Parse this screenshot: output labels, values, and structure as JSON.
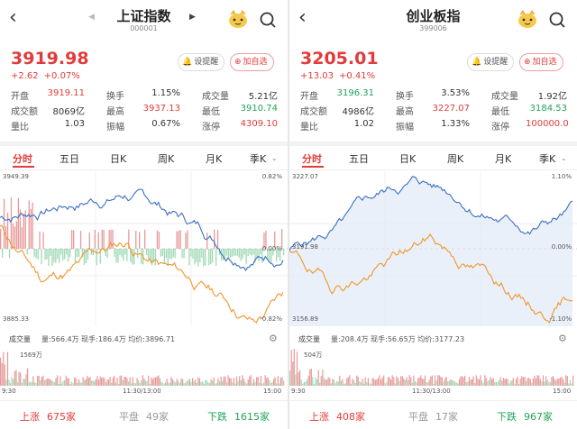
{
  "panels": [
    {
      "title": "上证指数",
      "code": "000001",
      "price": "3919.98",
      "change": "+2.62",
      "change_pct": "+0.07%",
      "remind_label": "设提醒",
      "add_label": "加自选",
      "stats": [
        [
          {
            "label": "开盘",
            "value": "3919.11",
            "color": "red"
          },
          {
            "label": "换手",
            "value": "1.15%",
            "color": "blk"
          },
          {
            "label": "成交量",
            "value": "5.21亿",
            "color": "blk"
          }
        ],
        [
          {
            "label": "成交额",
            "value": "8069亿",
            "color": "blk"
          },
          {
            "label": "最高",
            "value": "3937.13",
            "color": "red"
          },
          {
            "label": "最低",
            "value": "3910.74",
            "color": "green"
          }
        ],
        [
          {
            "label": "量比",
            "value": "1.03",
            "color": "blk"
          },
          {
            "label": "振幅",
            "value": "0.67%",
            "color": "blk"
          },
          {
            "label": "涨停",
            "value": "4309.10",
            "color": "red"
          }
        ]
      ],
      "tabs": [
        "分时",
        "五日",
        "日K",
        "周K",
        "月K",
        "季K"
      ],
      "chart_top_label": "3949.39",
      "chart_bottom_label": "3885.33",
      "chart_mid_label": "0.00%",
      "chart_pct_top": "0.82%",
      "chart_pct_bottom": "-0.82%",
      "vol_tab": "成交量",
      "vol_detail": "量:566.4万  现手:186.4万  均价:3896.71",
      "vol_max_label": "1569万",
      "time_start": "9:30",
      "time_mid": "11:30/13:00",
      "time_end": "15:00",
      "up_label": "上涨",
      "up_count": "675家",
      "flat_label": "平盘",
      "flat_count": "49家",
      "down_label": "下跌",
      "down_count": "1615家"
    },
    {
      "title": "创业板指",
      "code": "399006",
      "price": "3205.01",
      "change": "+13.03",
      "change_pct": "+0.41%",
      "remind_label": "设提醒",
      "add_label": "加自选",
      "stats": [
        [
          {
            "label": "开盘",
            "value": "3196.31",
            "color": "green"
          },
          {
            "label": "换手",
            "value": "3.53%",
            "color": "blk"
          },
          {
            "label": "成交量",
            "value": "1.92亿",
            "color": "blk"
          }
        ],
        [
          {
            "label": "成交额",
            "value": "4986亿",
            "color": "blk"
          },
          {
            "label": "最高",
            "value": "3227.07",
            "color": "red"
          },
          {
            "label": "最低",
            "value": "3184.53",
            "color": "green"
          }
        ],
        [
          {
            "label": "量比",
            "value": "1.02",
            "color": "blk"
          },
          {
            "label": "振幅",
            "value": "1.33%",
            "color": "blk"
          },
          {
            "label": "涨停",
            "value": "100000.0",
            "color": "red"
          }
        ]
      ],
      "tabs": [
        "分时",
        "五日",
        "日K",
        "周K",
        "月K",
        "季K"
      ],
      "chart_top_label": "3227.07",
      "chart_bottom_label": "3156.89",
      "chart_mid_label": "3191.98",
      "chart_pct_top": "1.10%",
      "chart_pct_bottom": "-1.10%",
      "chart_pct_mid": "0.00%",
      "vol_tab": "成交量",
      "vol_detail": "量:208.4万  现手:56.65万  均价:3177.23",
      "vol_max_label": "504万",
      "time_start": "9:30",
      "time_mid": "11:30/13:00",
      "time_end": "15:00",
      "up_label": "上涨",
      "up_count": "408家",
      "flat_label": "平盘",
      "flat_count": "17家",
      "down_label": "下跌",
      "down_count": "967家"
    }
  ],
  "colors": {
    "up": "#e23b3b",
    "down": "#22a35a",
    "price_line": "#3a6fc4",
    "avg_line": "#f0962b"
  }
}
